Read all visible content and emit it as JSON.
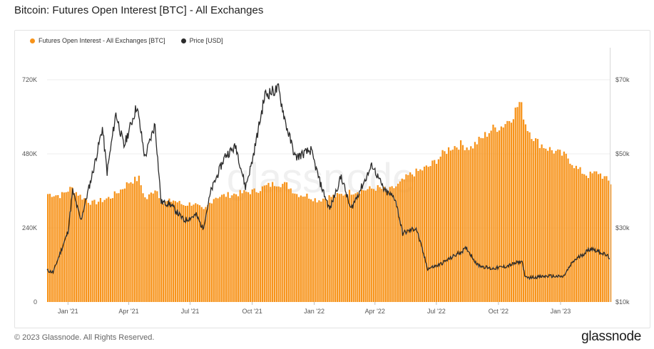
{
  "header": {
    "title": "Bitcoin: Futures Open Interest [BTC] - All Exchanges"
  },
  "footer": {
    "copyright": "© 2023 Glassnode. All Rights Reserved.",
    "brand": "glassnode"
  },
  "watermark": "glassnode",
  "colors": {
    "bars": "#f7931a",
    "price": "#2b2b2b"
  },
  "chart_data": {
    "type": "bar",
    "legend": [
      {
        "name": "Futures Open Interest - All Exchanges [BTC]",
        "color": "#f7931a",
        "marker": "dot"
      },
      {
        "name": "Price [USD]",
        "color": "#2b2b2b",
        "marker": "dot"
      }
    ],
    "legend_position": "top-left",
    "x": {
      "start": "2020-12-01",
      "end": "2023-03-15",
      "ticks": [
        {
          "date": "2021-01-01",
          "label": "Jan '21"
        },
        {
          "date": "2021-04-01",
          "label": "Apr '21"
        },
        {
          "date": "2021-07-01",
          "label": "Jul '21"
        },
        {
          "date": "2021-10-01",
          "label": "Oct '21"
        },
        {
          "date": "2022-01-01",
          "label": "Jan '22"
        },
        {
          "date": "2022-04-01",
          "label": "Apr '22"
        },
        {
          "date": "2022-07-01",
          "label": "Jul '22"
        },
        {
          "date": "2022-10-01",
          "label": "Oct '22"
        },
        {
          "date": "2023-01-01",
          "label": "Jan '23"
        }
      ]
    },
    "y_left": {
      "min": 0,
      "max": 720000,
      "ticks": [
        0,
        240000,
        480000,
        720000
      ],
      "tick_labels": [
        "0",
        "240K",
        "480K",
        "720K"
      ],
      "scale": "linear"
    },
    "y_right": {
      "min": 10000,
      "max": 70000,
      "ticks": [
        10000,
        30000,
        50000,
        70000
      ],
      "tick_labels": [
        "$10k",
        "$30k",
        "$50k",
        "$70k"
      ],
      "scale": "linear"
    },
    "grid": true,
    "series": [
      {
        "name": "Futures Open Interest - All Exchanges [BTC]",
        "type": "bar",
        "axis": "left",
        "points": [
          [
            "2020-12-01",
            350000
          ],
          [
            "2020-12-20",
            345000
          ],
          [
            "2021-01-05",
            370000
          ],
          [
            "2021-01-20",
            340000
          ],
          [
            "2021-02-05",
            320000
          ],
          [
            "2021-02-20",
            330000
          ],
          [
            "2021-03-05",
            340000
          ],
          [
            "2021-03-20",
            365000
          ],
          [
            "2021-04-01",
            390000
          ],
          [
            "2021-04-15",
            400000
          ],
          [
            "2021-04-25",
            330000
          ],
          [
            "2021-05-10",
            370000
          ],
          [
            "2021-05-20",
            320000
          ],
          [
            "2021-06-05",
            330000
          ],
          [
            "2021-06-20",
            315000
          ],
          [
            "2021-07-05",
            320000
          ],
          [
            "2021-07-20",
            295000
          ],
          [
            "2021-08-05",
            340000
          ],
          [
            "2021-08-20",
            345000
          ],
          [
            "2021-09-05",
            350000
          ],
          [
            "2021-09-20",
            355000
          ],
          [
            "2021-10-05",
            360000
          ],
          [
            "2021-10-20",
            375000
          ],
          [
            "2021-11-05",
            385000
          ],
          [
            "2021-11-20",
            380000
          ],
          [
            "2021-12-05",
            350000
          ],
          [
            "2021-12-20",
            345000
          ],
          [
            "2022-01-05",
            330000
          ],
          [
            "2022-01-20",
            340000
          ],
          [
            "2022-02-05",
            345000
          ],
          [
            "2022-02-20",
            355000
          ],
          [
            "2022-03-05",
            360000
          ],
          [
            "2022-03-20",
            365000
          ],
          [
            "2022-04-05",
            370000
          ],
          [
            "2022-04-20",
            360000
          ],
          [
            "2022-05-05",
            380000
          ],
          [
            "2022-05-20",
            410000
          ],
          [
            "2022-06-05",
            425000
          ],
          [
            "2022-06-20",
            440000
          ],
          [
            "2022-07-05",
            470000
          ],
          [
            "2022-07-20",
            500000
          ],
          [
            "2022-08-05",
            510000
          ],
          [
            "2022-08-20",
            500000
          ],
          [
            "2022-09-05",
            530000
          ],
          [
            "2022-09-20",
            560000
          ],
          [
            "2022-10-05",
            570000
          ],
          [
            "2022-10-20",
            600000
          ],
          [
            "2022-11-01",
            650000
          ],
          [
            "2022-11-10",
            570000
          ],
          [
            "2022-11-25",
            520000
          ],
          [
            "2022-12-10",
            500000
          ],
          [
            "2022-12-25",
            485000
          ],
          [
            "2023-01-10",
            470000
          ],
          [
            "2023-01-25",
            430000
          ],
          [
            "2023-02-10",
            410000
          ],
          [
            "2023-02-25",
            420000
          ],
          [
            "2023-03-15",
            385000
          ]
        ]
      },
      {
        "name": "Price [USD]",
        "type": "line",
        "axis": "right",
        "points": [
          [
            "2020-12-01",
            18500
          ],
          [
            "2020-12-10",
            18000
          ],
          [
            "2020-12-20",
            23000
          ],
          [
            "2021-01-01",
            29000
          ],
          [
            "2021-01-08",
            40000
          ],
          [
            "2021-01-20",
            32000
          ],
          [
            "2021-02-08",
            46000
          ],
          [
            "2021-02-21",
            57000
          ],
          [
            "2021-02-28",
            45000
          ],
          [
            "2021-03-13",
            61000
          ],
          [
            "2021-03-25",
            52000
          ],
          [
            "2021-04-13",
            63000
          ],
          [
            "2021-04-25",
            49000
          ],
          [
            "2021-05-10",
            58000
          ],
          [
            "2021-05-19",
            37000
          ],
          [
            "2021-06-01",
            36500
          ],
          [
            "2021-06-22",
            32000
          ],
          [
            "2021-07-10",
            33500
          ],
          [
            "2021-07-20",
            29800
          ],
          [
            "2021-08-01",
            40000
          ],
          [
            "2021-08-22",
            49500
          ],
          [
            "2021-09-07",
            52000
          ],
          [
            "2021-09-21",
            41000
          ],
          [
            "2021-10-01",
            48000
          ],
          [
            "2021-10-20",
            66000
          ],
          [
            "2021-11-09",
            67500
          ],
          [
            "2021-11-20",
            58000
          ],
          [
            "2021-12-04",
            49000
          ],
          [
            "2021-12-27",
            51000
          ],
          [
            "2022-01-10",
            42000
          ],
          [
            "2022-01-24",
            35000
          ],
          [
            "2022-02-10",
            44000
          ],
          [
            "2022-02-24",
            35000
          ],
          [
            "2022-03-28",
            47000
          ],
          [
            "2022-04-15",
            40000
          ],
          [
            "2022-05-01",
            38000
          ],
          [
            "2022-05-12",
            28500
          ],
          [
            "2022-06-01",
            30000
          ],
          [
            "2022-06-18",
            19000
          ],
          [
            "2022-07-05",
            20000
          ],
          [
            "2022-08-15",
            24500
          ],
          [
            "2022-08-31",
            20000
          ],
          [
            "2022-09-20",
            19000
          ],
          [
            "2022-10-10",
            19500
          ],
          [
            "2022-11-05",
            21000
          ],
          [
            "2022-11-10",
            16500
          ],
          [
            "2022-12-15",
            17000
          ],
          [
            "2023-01-05",
            16800
          ],
          [
            "2023-01-20",
            21000
          ],
          [
            "2023-02-15",
            24500
          ],
          [
            "2023-03-01",
            23500
          ],
          [
            "2023-03-15",
            22000
          ]
        ]
      }
    ]
  }
}
